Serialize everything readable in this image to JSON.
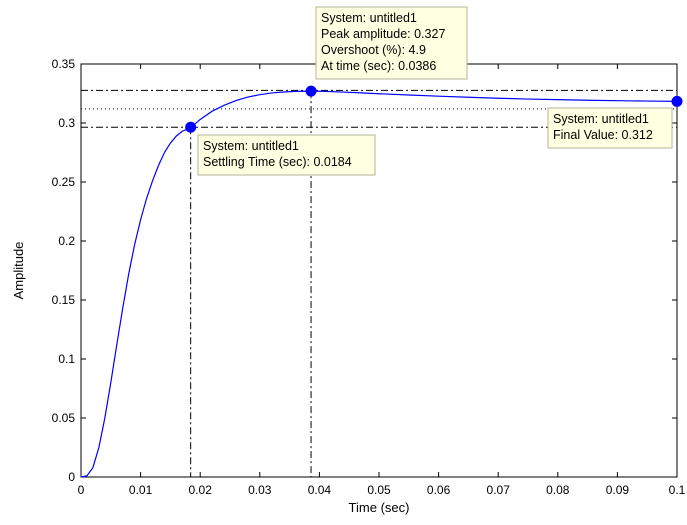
{
  "chart_data": {
    "type": "line",
    "title": "",
    "xlabel": "Time (sec)",
    "ylabel": "Amplitude",
    "xlim": [
      0,
      0.1
    ],
    "ylim": [
      0,
      0.35
    ],
    "xticks": [
      0,
      0.01,
      0.02,
      0.03,
      0.04,
      0.05,
      0.06,
      0.07,
      0.08,
      0.09,
      0.1
    ],
    "xtick_labels": [
      "0",
      "0.01",
      "0.02",
      "0.03",
      "0.04",
      "0.05",
      "0.06",
      "0.07",
      "0.08",
      "0.09",
      "0.1"
    ],
    "yticks": [
      0,
      0.05,
      0.1,
      0.15,
      0.2,
      0.25,
      0.3,
      0.35
    ],
    "ytick_labels": [
      "0",
      "0.05",
      "0.1",
      "0.15",
      "0.2",
      "0.25",
      "0.3",
      "0.35"
    ],
    "grid": false,
    "line_color": "#0000ff",
    "marker_color": "#0000ff",
    "series": [
      {
        "x": [
          0,
          0.001,
          0.002,
          0.003,
          0.004,
          0.005,
          0.006,
          0.007,
          0.008,
          0.009,
          0.01,
          0.011,
          0.012,
          0.013,
          0.014,
          0.015,
          0.016,
          0.017,
          0.0184,
          0.02,
          0.022,
          0.024,
          0.026,
          0.028,
          0.03,
          0.032,
          0.034,
          0.036,
          0.0386,
          0.041,
          0.044,
          0.047,
          0.05,
          0.055,
          0.06,
          0.065,
          0.07,
          0.075,
          0.08,
          0.085,
          0.09,
          0.095,
          0.1
        ],
        "y": [
          0,
          0.001,
          0.008,
          0.025,
          0.05,
          0.08,
          0.112,
          0.143,
          0.172,
          0.197,
          0.218,
          0.236,
          0.251,
          0.264,
          0.275,
          0.283,
          0.289,
          0.293,
          0.296,
          0.303,
          0.31,
          0.315,
          0.319,
          0.322,
          0.324,
          0.3255,
          0.3263,
          0.3268,
          0.327,
          0.3268,
          0.3262,
          0.3255,
          0.3248,
          0.3237,
          0.3227,
          0.3218,
          0.321,
          0.3203,
          0.3198,
          0.3193,
          0.3189,
          0.3186,
          0.3183
        ]
      }
    ],
    "characteristics": {
      "final_value": 0.312,
      "settling_band": [
        0.2964,
        0.3276
      ],
      "settling_time": 0.0184,
      "peak_time": 0.0386,
      "peak_amplitude": 0.327,
      "final_marker_x": 0.1,
      "final_marker_y": 0.3183
    },
    "annotations": {
      "peak": [
        "System: untitled1",
        "Peak amplitude: 0.327",
        "Overshoot (%): 4.9",
        "At time (sec): 0.0386"
      ],
      "settling": [
        "System: untitled1",
        "Settling Time (sec): 0.0184"
      ],
      "final": [
        "System: untitled1",
        "Final Value: 0.312"
      ]
    }
  }
}
